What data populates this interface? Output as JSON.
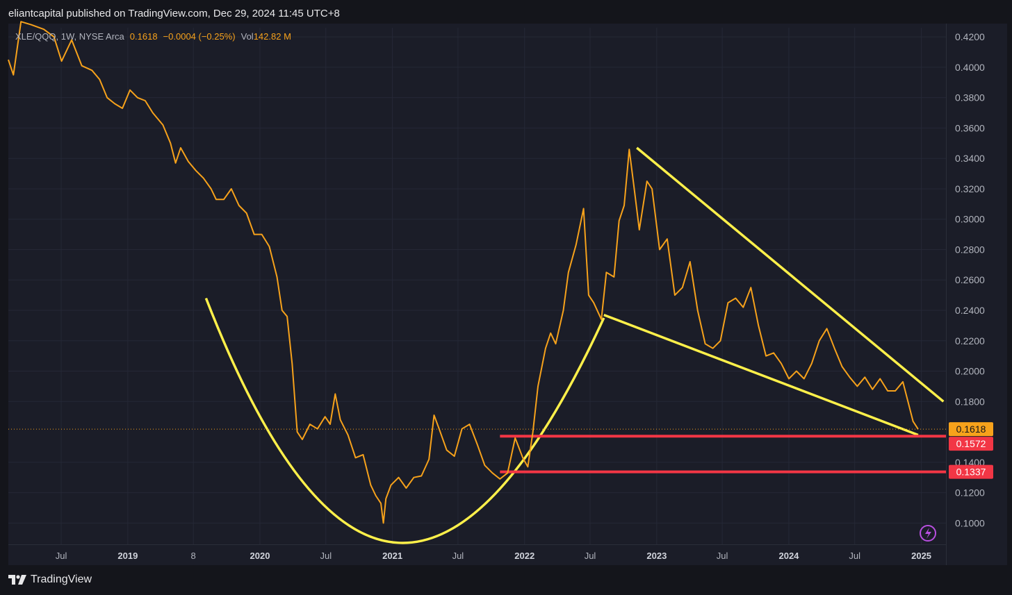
{
  "header": {
    "publish_line": "eliantcapital published on TradingView.com, Dec 29, 2024 11:45 UTC+8"
  },
  "legend": {
    "symbol": "XLE/QQQ, 1W, NYSE Arca",
    "price": "0.1618",
    "change": "−0.0004 (−0.25%)",
    "vol_label": "Vol",
    "vol_value": "142.82 M"
  },
  "footer": {
    "brand": "TradingView"
  },
  "colors": {
    "background": "#1b1d28",
    "price_line": "#f7a21b",
    "drawings": "#fff04a",
    "support": "#f23645",
    "last_price_badge": "#f7a21b",
    "support_badge": "#f23645"
  },
  "chart_data": {
    "type": "line",
    "title": "",
    "xlabel": "",
    "ylabel": "",
    "ylim": [
      0.086,
      0.426
    ],
    "y_ticks": [
      "0.4200",
      "0.4000",
      "0.3800",
      "0.3600",
      "0.3400",
      "0.3200",
      "0.3000",
      "0.2800",
      "0.2600",
      "0.2400",
      "0.2200",
      "0.2000",
      "0.1800",
      "0.1400",
      "0.1200",
      "0.1000"
    ],
    "x_ticks": [
      {
        "label": "Jul",
        "date": "2018-07-01",
        "bold": false
      },
      {
        "label": "2019",
        "date": "2019-01-01",
        "bold": true
      },
      {
        "label": "8",
        "date": "2019-07-01",
        "bold": false
      },
      {
        "label": "2020",
        "date": "2020-01-01",
        "bold": true
      },
      {
        "label": "Jul",
        "date": "2020-07-01",
        "bold": false
      },
      {
        "label": "2021",
        "date": "2021-01-01",
        "bold": true
      },
      {
        "label": "Jul",
        "date": "2021-07-01",
        "bold": false
      },
      {
        "label": "2022",
        "date": "2022-01-01",
        "bold": true
      },
      {
        "label": "Jul",
        "date": "2022-07-01",
        "bold": false
      },
      {
        "label": "2023",
        "date": "2023-01-01",
        "bold": true
      },
      {
        "label": "Jul",
        "date": "2023-07-01",
        "bold": false
      },
      {
        "label": "2024",
        "date": "2024-01-01",
        "bold": true
      },
      {
        "label": "Jul",
        "date": "2024-07-01",
        "bold": false
      },
      {
        "label": "2025",
        "date": "2025-01-01",
        "bold": true
      }
    ],
    "x_range": [
      "2018-02-05",
      "2025-03-10"
    ],
    "grid": true,
    "series": [
      {
        "color": "#f7a21b",
        "points": [
          [
            "2018-02-05",
            0.405
          ],
          [
            "2018-02-19",
            0.395
          ],
          [
            "2018-03-12",
            0.43
          ],
          [
            "2018-04-09",
            0.428
          ],
          [
            "2018-05-14",
            0.425
          ],
          [
            "2018-06-11",
            0.42
          ],
          [
            "2018-07-02",
            0.404
          ],
          [
            "2018-07-30",
            0.418
          ],
          [
            "2018-08-27",
            0.401
          ],
          [
            "2018-09-24",
            0.398
          ],
          [
            "2018-10-15",
            0.392
          ],
          [
            "2018-11-05",
            0.38
          ],
          [
            "2018-11-26",
            0.376
          ],
          [
            "2018-12-17",
            0.373
          ],
          [
            "2019-01-07",
            0.385
          ],
          [
            "2019-01-28",
            0.38
          ],
          [
            "2019-02-18",
            0.378
          ],
          [
            "2019-03-11",
            0.37
          ],
          [
            "2019-04-08",
            0.362
          ],
          [
            "2019-04-29",
            0.35
          ],
          [
            "2019-05-13",
            0.337
          ],
          [
            "2019-05-27",
            0.347
          ],
          [
            "2019-06-17",
            0.338
          ],
          [
            "2019-07-08",
            0.332
          ],
          [
            "2019-07-29",
            0.327
          ],
          [
            "2019-08-19",
            0.32
          ],
          [
            "2019-09-02",
            0.313
          ],
          [
            "2019-09-23",
            0.313
          ],
          [
            "2019-10-14",
            0.32
          ],
          [
            "2019-11-04",
            0.309
          ],
          [
            "2019-11-25",
            0.304
          ],
          [
            "2019-12-16",
            0.29
          ],
          [
            "2020-01-06",
            0.29
          ],
          [
            "2020-01-27",
            0.282
          ],
          [
            "2020-02-17",
            0.262
          ],
          [
            "2020-03-02",
            0.24
          ],
          [
            "2020-03-16",
            0.236
          ],
          [
            "2020-03-30",
            0.205
          ],
          [
            "2020-04-13",
            0.16
          ],
          [
            "2020-04-27",
            0.155
          ],
          [
            "2020-05-18",
            0.165
          ],
          [
            "2020-06-08",
            0.162
          ],
          [
            "2020-06-29",
            0.17
          ],
          [
            "2020-07-13",
            0.165
          ],
          [
            "2020-07-27",
            0.185
          ],
          [
            "2020-08-10",
            0.168
          ],
          [
            "2020-08-31",
            0.158
          ],
          [
            "2020-09-21",
            0.143
          ],
          [
            "2020-10-12",
            0.145
          ],
          [
            "2020-11-02",
            0.125
          ],
          [
            "2020-11-16",
            0.118
          ],
          [
            "2020-11-30",
            0.113
          ],
          [
            "2020-12-07",
            0.1
          ],
          [
            "2020-12-14",
            0.116
          ],
          [
            "2020-12-28",
            0.125
          ],
          [
            "2021-01-18",
            0.13
          ],
          [
            "2021-02-08",
            0.123
          ],
          [
            "2021-03-01",
            0.13
          ],
          [
            "2021-03-22",
            0.131
          ],
          [
            "2021-04-12",
            0.142
          ],
          [
            "2021-04-26",
            0.171
          ],
          [
            "2021-05-10",
            0.162
          ],
          [
            "2021-05-31",
            0.148
          ],
          [
            "2021-06-21",
            0.144
          ],
          [
            "2021-07-12",
            0.162
          ],
          [
            "2021-08-02",
            0.165
          ],
          [
            "2021-08-23",
            0.152
          ],
          [
            "2021-09-13",
            0.138
          ],
          [
            "2021-10-04",
            0.133
          ],
          [
            "2021-10-25",
            0.129
          ],
          [
            "2021-11-15",
            0.133
          ],
          [
            "2021-12-06",
            0.156
          ],
          [
            "2021-12-27",
            0.143
          ],
          [
            "2022-01-10",
            0.137
          ],
          [
            "2022-01-24",
            0.16
          ],
          [
            "2022-02-07",
            0.19
          ],
          [
            "2022-02-28",
            0.215
          ],
          [
            "2022-03-14",
            0.225
          ],
          [
            "2022-03-28",
            0.218
          ],
          [
            "2022-04-18",
            0.24
          ],
          [
            "2022-05-02",
            0.265
          ],
          [
            "2022-05-23",
            0.283
          ],
          [
            "2022-06-13",
            0.307
          ],
          [
            "2022-06-27",
            0.25
          ],
          [
            "2022-07-11",
            0.245
          ],
          [
            "2022-08-01",
            0.234
          ],
          [
            "2022-08-15",
            0.265
          ],
          [
            "2022-09-05",
            0.262
          ],
          [
            "2022-09-19",
            0.299
          ],
          [
            "2022-10-03",
            0.309
          ],
          [
            "2022-10-17",
            0.346
          ],
          [
            "2022-10-31",
            0.32
          ],
          [
            "2022-11-14",
            0.293
          ],
          [
            "2022-12-05",
            0.325
          ],
          [
            "2022-12-19",
            0.32
          ],
          [
            "2023-01-09",
            0.28
          ],
          [
            "2023-01-30",
            0.287
          ],
          [
            "2023-02-20",
            0.25
          ],
          [
            "2023-03-13",
            0.255
          ],
          [
            "2023-04-03",
            0.272
          ],
          [
            "2023-04-24",
            0.24
          ],
          [
            "2023-05-15",
            0.218
          ],
          [
            "2023-06-05",
            0.215
          ],
          [
            "2023-06-26",
            0.22
          ],
          [
            "2023-07-17",
            0.245
          ],
          [
            "2023-08-07",
            0.248
          ],
          [
            "2023-08-28",
            0.242
          ],
          [
            "2023-09-18",
            0.255
          ],
          [
            "2023-10-09",
            0.23
          ],
          [
            "2023-10-30",
            0.21
          ],
          [
            "2023-11-20",
            0.212
          ],
          [
            "2023-12-11",
            0.205
          ],
          [
            "2024-01-01",
            0.195
          ],
          [
            "2024-01-22",
            0.2
          ],
          [
            "2024-02-12",
            0.195
          ],
          [
            "2024-03-04",
            0.205
          ],
          [
            "2024-03-25",
            0.22
          ],
          [
            "2024-04-15",
            0.228
          ],
          [
            "2024-05-06",
            0.215
          ],
          [
            "2024-05-27",
            0.203
          ],
          [
            "2024-06-17",
            0.196
          ],
          [
            "2024-07-08",
            0.19
          ],
          [
            "2024-07-29",
            0.196
          ],
          [
            "2024-08-19",
            0.188
          ],
          [
            "2024-09-09",
            0.195
          ],
          [
            "2024-09-30",
            0.187
          ],
          [
            "2024-10-21",
            0.187
          ],
          [
            "2024-11-11",
            0.193
          ],
          [
            "2024-11-25",
            0.18
          ],
          [
            "2024-12-09",
            0.167
          ],
          [
            "2024-12-23",
            0.1618
          ]
        ]
      }
    ],
    "last_price": 0.1618,
    "price_labels": [
      "0.1618",
      "0.1572",
      "0.1337"
    ],
    "horizontal_levels": [
      {
        "value": 0.1572,
        "from": "2021-10-25",
        "label": "0.1572"
      },
      {
        "value": 0.1337,
        "from": "2021-10-25",
        "label": "0.1337"
      }
    ],
    "trendlines": [
      {
        "points": [
          [
            "2022-11-07",
            0.347
          ],
          [
            "2025-03-03",
            0.18
          ]
        ]
      },
      {
        "points": [
          [
            "2022-08-08",
            0.237
          ],
          [
            "2024-12-23",
            0.158
          ]
        ]
      }
    ],
    "arc": {
      "start": [
        "2019-08-05",
        0.248
      ],
      "bottom": [
        "2021-01-18",
        0.087
      ],
      "end": [
        "2022-08-08",
        0.235
      ]
    }
  }
}
